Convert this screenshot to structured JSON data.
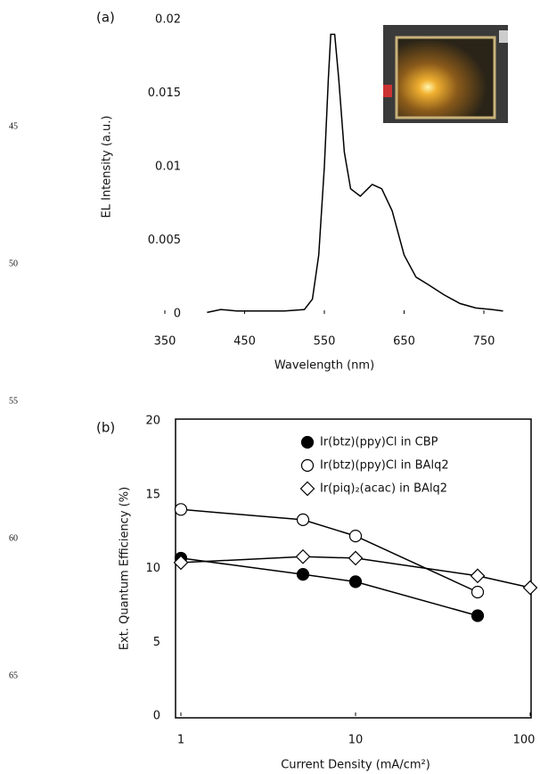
{
  "line_numbers": [
    "45",
    "50",
    "55",
    "60",
    "65"
  ],
  "chart_data": [
    {
      "type": "line",
      "panel": "(a)",
      "x_label": "Wavelength (nm)",
      "y_label": "EL Intensity (a.u.)",
      "x": [
        403,
        420,
        440,
        500,
        525,
        535,
        543,
        550,
        555,
        558,
        563,
        568,
        575,
        583,
        595,
        610,
        622,
        635,
        650,
        665,
        680,
        700,
        720,
        740,
        760,
        774
      ],
      "series": [
        {
          "color": "#000000",
          "values": [
            0.0001,
            0.0003,
            0.0002,
            0.0002,
            0.0003,
            0.001,
            0.004,
            0.01,
            0.016,
            0.019,
            0.019,
            0.016,
            0.011,
            0.0085,
            0.008,
            0.0088,
            0.0085,
            0.007,
            0.004,
            0.0025,
            0.002,
            0.0013,
            0.0007,
            0.0004,
            0.0003,
            0.0002
          ]
        }
      ],
      "xlim": [
        350,
        750
      ],
      "xticks": [
        350,
        450,
        550,
        650,
        750
      ],
      "ylim": [
        0,
        0.02
      ],
      "yticks": [
        0,
        0.005,
        0.01,
        0.015,
        0.02
      ],
      "frame": false
    },
    {
      "type": "line",
      "panel": "(b)",
      "x_label": "Current Density (mA/cm²)",
      "y_label": "Ext. Quantum Efficiency (%)",
      "xscale": "log",
      "x": [
        1,
        5,
        10,
        50,
        100
      ],
      "series": [
        {
          "name": "Ir(btz)(ppy)Cl in CBP",
          "color": "#000000",
          "marker": "circle",
          "filled": true,
          "values": [
            10.7,
            9.6,
            9.1,
            6.8,
            null
          ]
        },
        {
          "name": "Ir(btz)(ppy)Cl in BAlq2",
          "color": "#000000",
          "marker": "circle",
          "filled": false,
          "values": [
            14.0,
            13.3,
            12.2,
            8.4,
            null
          ]
        },
        {
          "name": "Ir(piq)₂(acac) in BAlq2",
          "color": "#000000",
          "marker": "diamond",
          "filled": false,
          "values": [
            10.4,
            10.8,
            10.7,
            9.5,
            8.7
          ]
        }
      ],
      "xlim": [
        1,
        100
      ],
      "xticks": [
        1,
        10,
        100
      ],
      "ylim": [
        0,
        20
      ],
      "yticks": [
        0,
        5,
        10,
        15,
        20
      ],
      "frame": true,
      "legend": "upper right"
    }
  ]
}
